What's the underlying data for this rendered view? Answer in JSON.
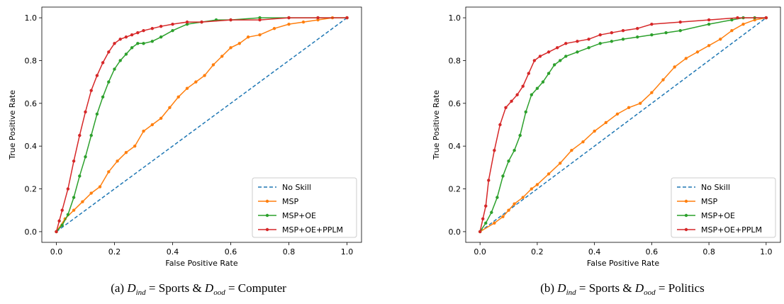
{
  "series_styles": [
    {
      "name": "No Skill",
      "color": "#1f77b4",
      "dash": true,
      "markers": false
    },
    {
      "name": "MSP",
      "color": "#ff7f0e",
      "dash": false,
      "markers": true
    },
    {
      "name": "MSP+OE",
      "color": "#2ca02c",
      "dash": false,
      "markers": true
    },
    {
      "name": "MSP+OE+PPLM",
      "color": "#d62728",
      "dash": false,
      "markers": true
    }
  ],
  "chart_data": [
    {
      "type": "line",
      "caption": {
        "prefix": "(a)",
        "ind_label": "D",
        "ind_sub": "ind",
        "ind_value": "= Sports &",
        "ood_label": "D",
        "ood_sub": "ood",
        "ood_value": "= Computer"
      },
      "xlabel": "False Positive Rate",
      "ylabel": "True Positive Rate",
      "xlim": [
        -0.05,
        1.05
      ],
      "ylim": [
        -0.05,
        1.05
      ],
      "xticks": [
        0.0,
        0.2,
        0.4,
        0.6,
        0.8,
        1.0
      ],
      "yticks": [
        0.0,
        0.2,
        0.4,
        0.6,
        0.8,
        1.0
      ],
      "tick_labels": [
        "0.0",
        "0.2",
        "0.4",
        "0.6",
        "0.8",
        "1.0"
      ],
      "grid": false,
      "legend": "lower-right",
      "series": [
        {
          "name": "No Skill",
          "x": [
            0,
            1
          ],
          "y": [
            0,
            1
          ]
        },
        {
          "name": "MSP",
          "x": [
            0,
            0.03,
            0.06,
            0.09,
            0.12,
            0.15,
            0.18,
            0.21,
            0.24,
            0.27,
            0.3,
            0.33,
            0.36,
            0.39,
            0.42,
            0.45,
            0.48,
            0.51,
            0.54,
            0.57,
            0.6,
            0.63,
            0.66,
            0.7,
            0.75,
            0.8,
            0.85,
            0.9,
            0.95,
            1.0
          ],
          "y": [
            0,
            0.06,
            0.1,
            0.14,
            0.18,
            0.21,
            0.28,
            0.33,
            0.37,
            0.4,
            0.47,
            0.5,
            0.53,
            0.58,
            0.63,
            0.67,
            0.7,
            0.73,
            0.78,
            0.82,
            0.86,
            0.88,
            0.91,
            0.92,
            0.95,
            0.97,
            0.98,
            0.99,
            1.0,
            1.0
          ]
        },
        {
          "name": "MSP+OE",
          "x": [
            0,
            0.02,
            0.04,
            0.06,
            0.08,
            0.1,
            0.12,
            0.14,
            0.16,
            0.18,
            0.2,
            0.22,
            0.24,
            0.26,
            0.28,
            0.3,
            0.33,
            0.36,
            0.4,
            0.45,
            0.5,
            0.55,
            0.6,
            0.7,
            0.8,
            0.9,
            1.0
          ],
          "y": [
            0,
            0.03,
            0.08,
            0.16,
            0.26,
            0.35,
            0.45,
            0.55,
            0.63,
            0.7,
            0.76,
            0.8,
            0.83,
            0.86,
            0.88,
            0.88,
            0.89,
            0.91,
            0.94,
            0.97,
            0.98,
            0.99,
            0.99,
            1.0,
            1.0,
            1.0,
            1.0
          ]
        },
        {
          "name": "MSP+OE+PPLM",
          "x": [
            0,
            0.01,
            0.02,
            0.04,
            0.06,
            0.08,
            0.1,
            0.12,
            0.14,
            0.16,
            0.18,
            0.2,
            0.22,
            0.24,
            0.26,
            0.28,
            0.3,
            0.33,
            0.36,
            0.4,
            0.45,
            0.5,
            0.6,
            0.7,
            0.8,
            0.9,
            1.0
          ],
          "y": [
            0,
            0.05,
            0.1,
            0.2,
            0.33,
            0.45,
            0.56,
            0.66,
            0.73,
            0.79,
            0.84,
            0.88,
            0.9,
            0.91,
            0.92,
            0.93,
            0.94,
            0.95,
            0.96,
            0.97,
            0.98,
            0.98,
            0.99,
            0.99,
            1.0,
            1.0,
            1.0
          ]
        }
      ]
    },
    {
      "type": "line",
      "caption": {
        "prefix": "(b)",
        "ind_label": "D",
        "ind_sub": "ind",
        "ind_value": "= Sports &",
        "ood_label": "D",
        "ood_sub": "ood",
        "ood_value": "= Politics"
      },
      "xlabel": "False Positive Rate",
      "ylabel": "True Positive Rate",
      "xlim": [
        -0.05,
        1.05
      ],
      "ylim": [
        -0.05,
        1.05
      ],
      "xticks": [
        0.0,
        0.2,
        0.4,
        0.6,
        0.8,
        1.0
      ],
      "yticks": [
        0.0,
        0.2,
        0.4,
        0.6,
        0.8,
        1.0
      ],
      "tick_labels": [
        "0.0",
        "0.2",
        "0.4",
        "0.6",
        "0.8",
        "1.0"
      ],
      "grid": false,
      "legend": "lower-right",
      "series": [
        {
          "name": "No Skill",
          "x": [
            0,
            1
          ],
          "y": [
            0,
            1
          ]
        },
        {
          "name": "MSP",
          "x": [
            0,
            0.05,
            0.08,
            0.1,
            0.12,
            0.15,
            0.18,
            0.2,
            0.24,
            0.28,
            0.32,
            0.36,
            0.4,
            0.44,
            0.48,
            0.52,
            0.56,
            0.6,
            0.64,
            0.68,
            0.72,
            0.76,
            0.8,
            0.84,
            0.88,
            0.92,
            0.96,
            1.0
          ],
          "y": [
            0,
            0.04,
            0.07,
            0.1,
            0.13,
            0.16,
            0.2,
            0.22,
            0.27,
            0.32,
            0.38,
            0.42,
            0.47,
            0.51,
            0.55,
            0.58,
            0.6,
            0.65,
            0.71,
            0.77,
            0.81,
            0.84,
            0.87,
            0.9,
            0.94,
            0.97,
            0.99,
            1.0
          ]
        },
        {
          "name": "MSP+OE",
          "x": [
            0,
            0.02,
            0.04,
            0.06,
            0.08,
            0.1,
            0.12,
            0.14,
            0.16,
            0.18,
            0.2,
            0.22,
            0.24,
            0.26,
            0.28,
            0.3,
            0.34,
            0.38,
            0.42,
            0.46,
            0.5,
            0.55,
            0.6,
            0.65,
            0.7,
            0.8,
            0.88,
            0.92,
            0.96,
            1.0
          ],
          "y": [
            0,
            0.04,
            0.09,
            0.16,
            0.26,
            0.33,
            0.38,
            0.45,
            0.56,
            0.64,
            0.67,
            0.7,
            0.74,
            0.78,
            0.8,
            0.82,
            0.84,
            0.86,
            0.88,
            0.89,
            0.9,
            0.91,
            0.92,
            0.93,
            0.94,
            0.97,
            0.99,
            1.0,
            1.0,
            1.0
          ]
        },
        {
          "name": "MSP+OE+PPLM",
          "x": [
            0,
            0.01,
            0.02,
            0.03,
            0.05,
            0.07,
            0.09,
            0.11,
            0.13,
            0.15,
            0.17,
            0.19,
            0.21,
            0.24,
            0.27,
            0.3,
            0.34,
            0.38,
            0.42,
            0.46,
            0.5,
            0.55,
            0.6,
            0.7,
            0.8,
            0.9,
            1.0
          ],
          "y": [
            0,
            0.06,
            0.12,
            0.24,
            0.38,
            0.5,
            0.58,
            0.61,
            0.64,
            0.68,
            0.74,
            0.8,
            0.82,
            0.84,
            0.86,
            0.88,
            0.89,
            0.9,
            0.92,
            0.93,
            0.94,
            0.95,
            0.97,
            0.98,
            0.99,
            1.0,
            1.0
          ]
        }
      ]
    }
  ]
}
